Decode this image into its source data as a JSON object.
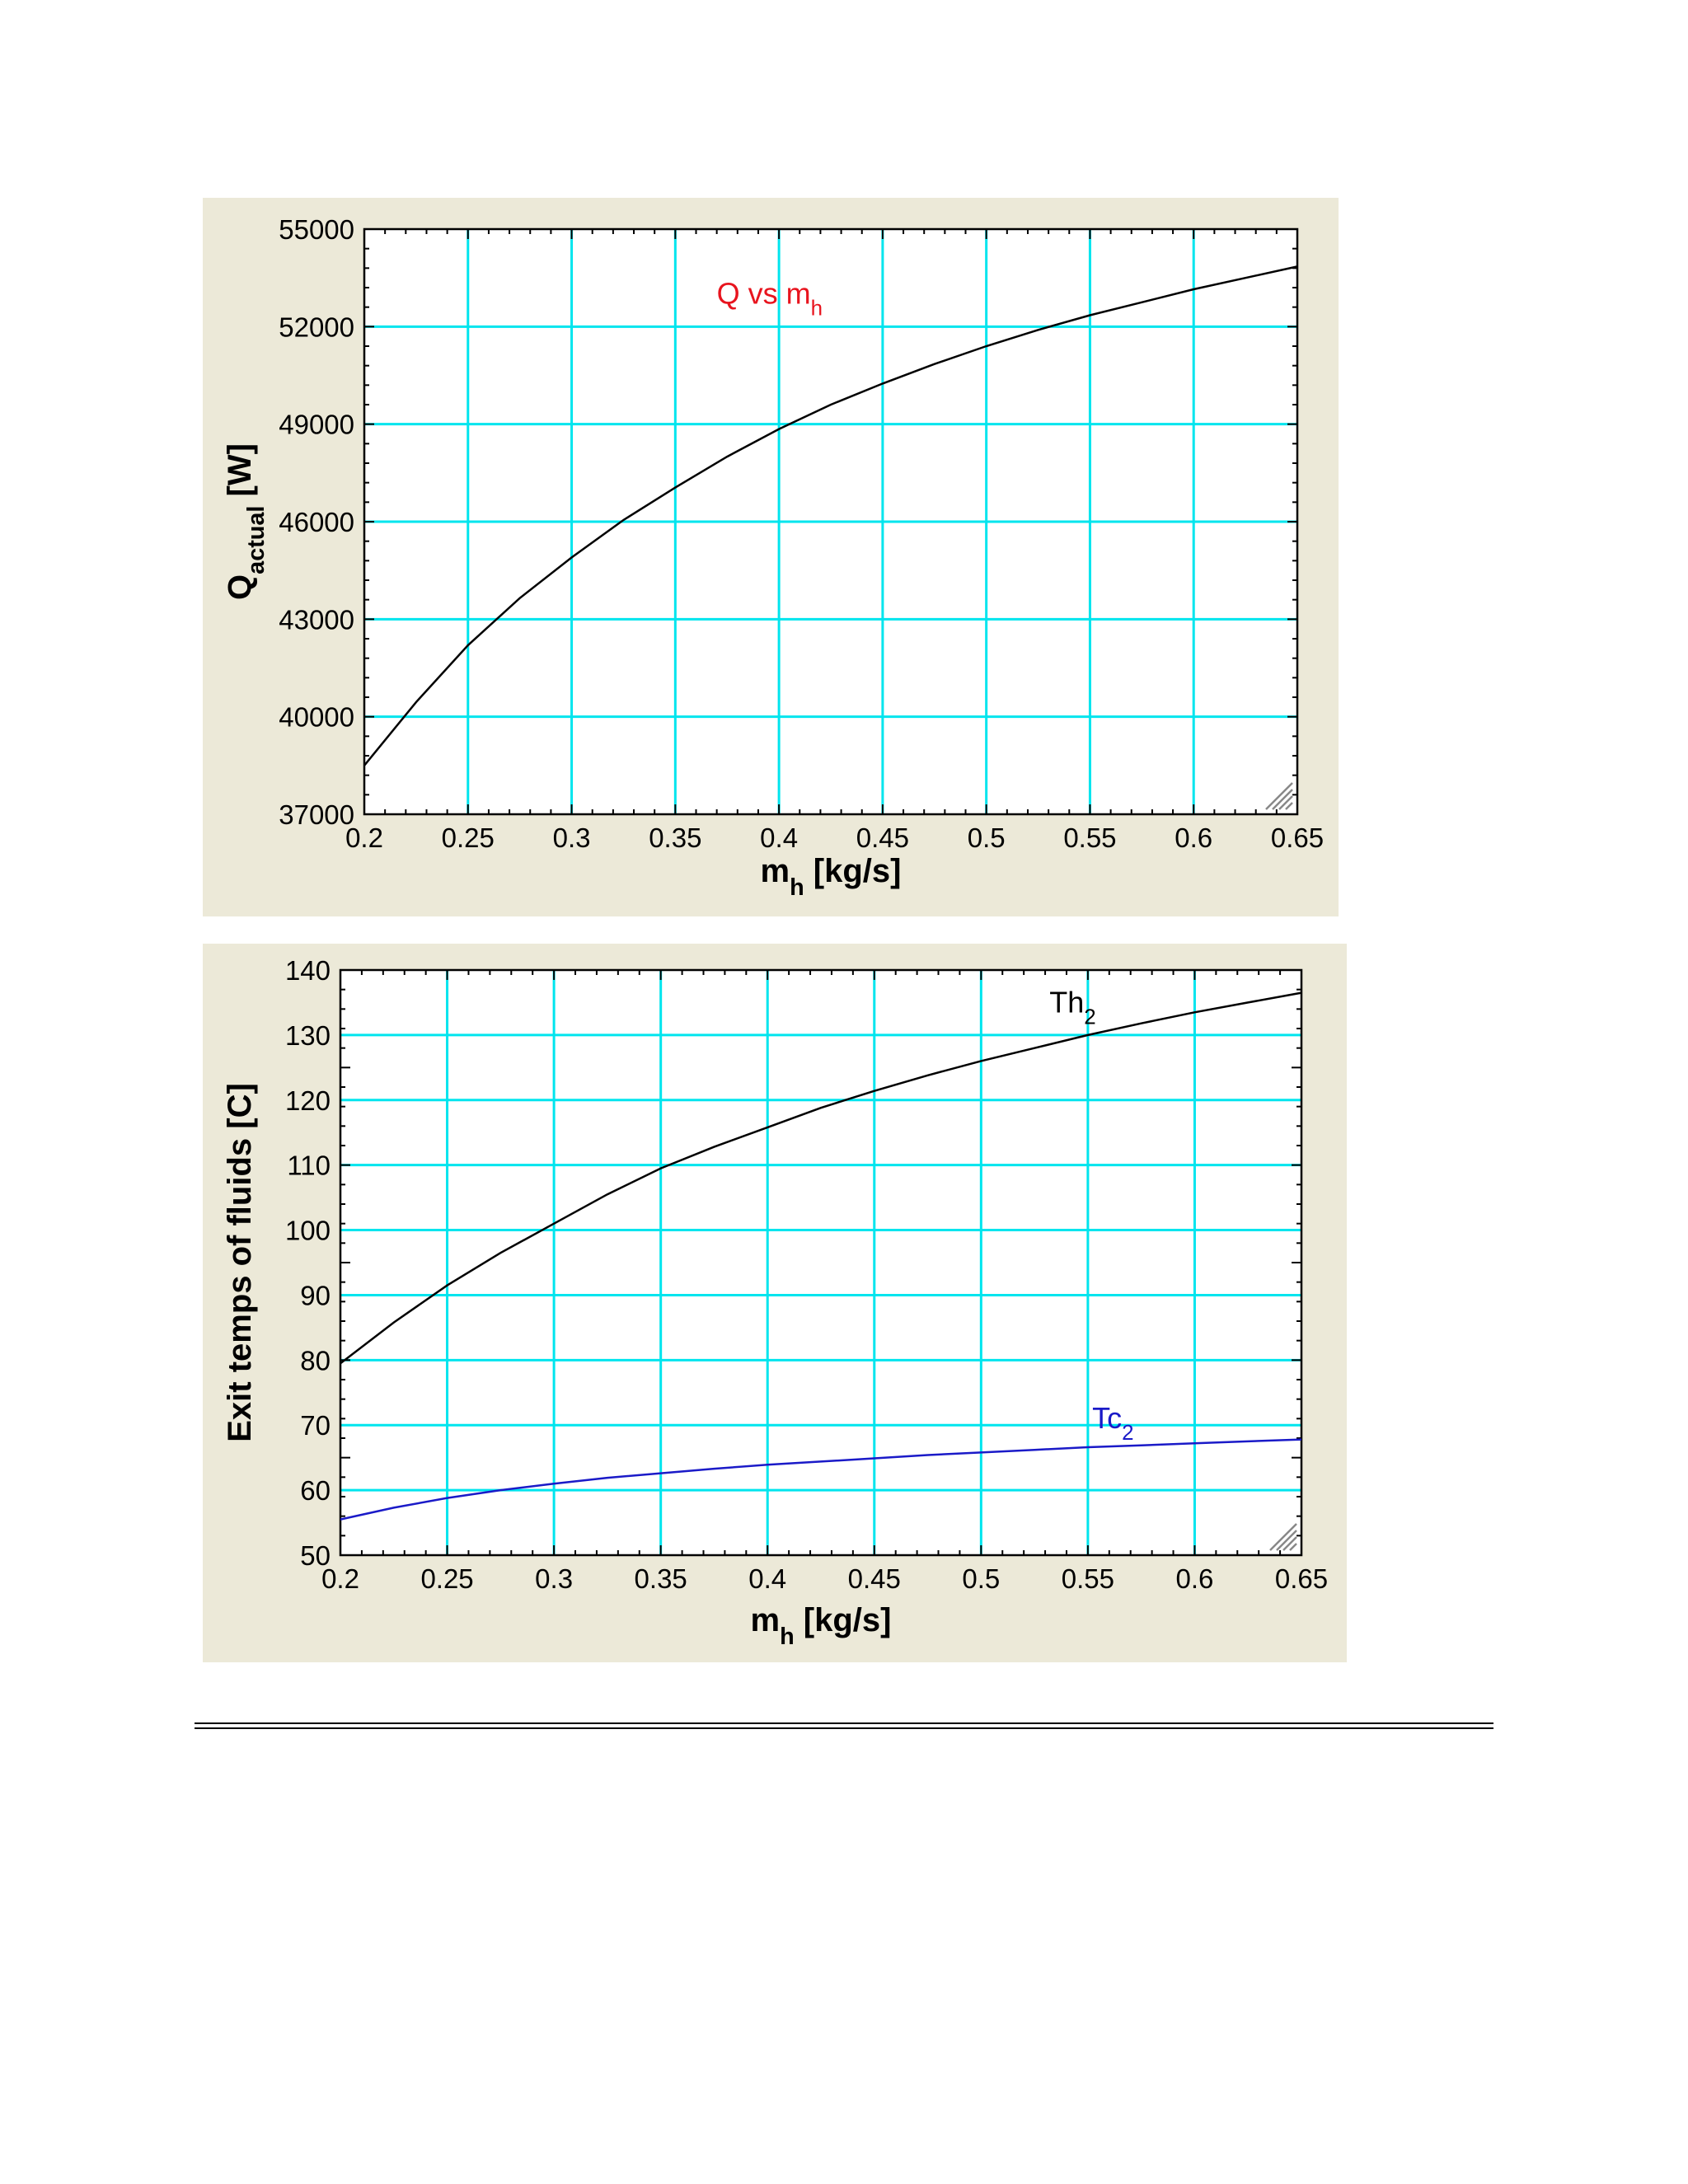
{
  "chart_data": [
    {
      "type": "line",
      "xlim": [
        0.2,
        0.65
      ],
      "ylim": [
        37000,
        55000
      ],
      "x_ticks": [
        "0.2",
        "0.25",
        "0.3",
        "0.35",
        "0.4",
        "0.45",
        "0.5",
        "0.55",
        "0.6",
        "0.65"
      ],
      "y_ticks": [
        "55000",
        "52000",
        "49000",
        "46000",
        "43000",
        "40000",
        "37000"
      ],
      "xlabel": {
        "main": "m",
        "sub": "h",
        "unit": "  [kg/s]"
      },
      "ylabel": {
        "main": "Q",
        "sub": "actual",
        "unit": "  [W]"
      },
      "grid": true,
      "plot_background": "#FFFFFF",
      "grid_color": "#00E5EE",
      "series": [
        {
          "label": {
            "main": "Q vs m",
            "sub": "h"
          },
          "color": "#000000",
          "label_color": "#E8141E",
          "x": [
            0.2,
            0.225,
            0.25,
            0.275,
            0.3,
            0.325,
            0.35,
            0.375,
            0.4,
            0.425,
            0.45,
            0.475,
            0.5,
            0.525,
            0.55,
            0.575,
            0.6,
            0.625,
            0.65
          ],
          "y": [
            38500,
            40450,
            42200,
            43650,
            44900,
            46050,
            47050,
            48000,
            48850,
            49600,
            50250,
            50850,
            51400,
            51900,
            52350,
            52750,
            53150,
            53500,
            53850
          ]
        }
      ]
    },
    {
      "type": "line",
      "xlim": [
        0.2,
        0.65
      ],
      "ylim": [
        50,
        140
      ],
      "x_ticks": [
        "0.2",
        "0.25",
        "0.3",
        "0.35",
        "0.4",
        "0.45",
        "0.5",
        "0.55",
        "0.6",
        "0.65"
      ],
      "y_ticks": [
        "140",
        "130",
        "120",
        "110",
        "100",
        "90",
        "80",
        "70",
        "60",
        "50"
      ],
      "xlabel": {
        "main": "m",
        "sub": "h",
        "unit": "  [kg/s]"
      },
      "ylabel": {
        "main": "Exit temps of fluids [C]",
        "sub": "",
        "unit": ""
      },
      "grid": true,
      "plot_background": "#FFFFFF",
      "grid_color": "#00E5EE",
      "series": [
        {
          "label": {
            "main": "Th",
            "sub": "2"
          },
          "color": "#000000",
          "label_color": "#000000",
          "x": [
            0.2,
            0.225,
            0.25,
            0.275,
            0.3,
            0.325,
            0.35,
            0.375,
            0.4,
            0.425,
            0.45,
            0.475,
            0.5,
            0.525,
            0.55,
            0.575,
            0.6,
            0.625,
            0.65
          ],
          "y": [
            79.5,
            85.8,
            91.5,
            96.5,
            101,
            105.5,
            109.5,
            112.8,
            115.8,
            118.8,
            121.4,
            123.8,
            126,
            128,
            130,
            131.8,
            133.5,
            135,
            136.5
          ]
        },
        {
          "label": {
            "main": "Tc",
            "sub": "2"
          },
          "color": "#1A1AC8",
          "label_color": "#1A1AC8",
          "x": [
            0.2,
            0.225,
            0.25,
            0.275,
            0.3,
            0.325,
            0.35,
            0.375,
            0.4,
            0.425,
            0.45,
            0.475,
            0.5,
            0.525,
            0.55,
            0.575,
            0.6,
            0.625,
            0.65
          ],
          "y": [
            55.5,
            57.3,
            58.8,
            60,
            61,
            61.9,
            62.6,
            63.3,
            63.9,
            64.4,
            64.9,
            65.4,
            65.8,
            66.2,
            66.6,
            66.9,
            67.2,
            67.5,
            67.8
          ]
        }
      ]
    }
  ]
}
